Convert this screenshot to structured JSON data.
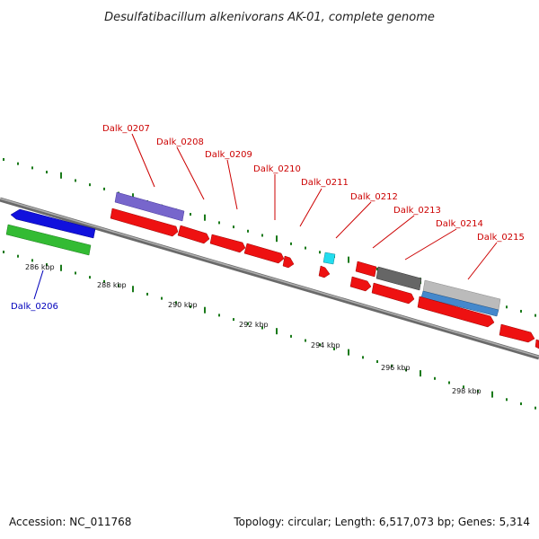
{
  "title": "Desulfatibacillum alkenivorans AK-01, complete genome",
  "footer": {
    "accession": "Accession: NC_011768",
    "summary": "Topology: circular; Length: 6,517,073 bp; Genes: 5,314"
  },
  "colors": {
    "backbone": "#7f7f7f",
    "tick": "#1a7a1a",
    "forward_label": "#cc0000",
    "reverse_label": "#0000bb",
    "gene_red": "#ee1111",
    "gene_blue": "#1111dd",
    "gene_green": "#33bb33",
    "gene_purple": "#7766cc",
    "gene_cyan": "#22ddee",
    "gene_darkgray": "#666666",
    "gene_lightgray": "#bbbbbb",
    "gene_steelblue": "#4488cc"
  },
  "gene_labels": [
    {
      "text": "Dalk_0206",
      "strand": "reverse"
    },
    {
      "text": "Dalk_0207",
      "strand": "forward"
    },
    {
      "text": "Dalk_0208",
      "strand": "forward"
    },
    {
      "text": "Dalk_0209",
      "strand": "forward"
    },
    {
      "text": "Dalk_0210",
      "strand": "forward"
    },
    {
      "text": "Dalk_0211",
      "strand": "forward"
    },
    {
      "text": "Dalk_0212",
      "strand": "forward"
    },
    {
      "text": "Dalk_0213",
      "strand": "forward"
    },
    {
      "text": "Dalk_0214",
      "strand": "forward"
    },
    {
      "text": "Dalk_0215",
      "strand": "forward"
    }
  ],
  "tick_labels": [
    "286 kbp",
    "288 kbp",
    "290 kbp",
    "292 kbp",
    "294 kbp",
    "296 kbp",
    "298 kbp"
  ]
}
